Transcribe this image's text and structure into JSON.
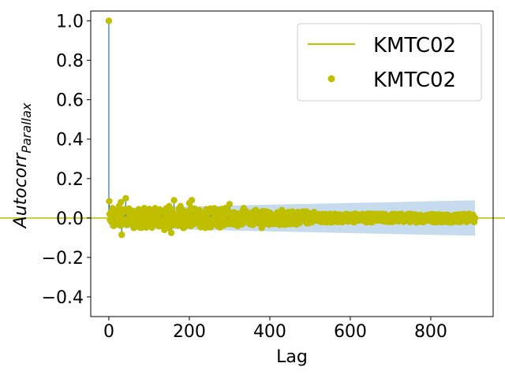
{
  "chart_data": {
    "type": "scatter",
    "title": "",
    "xlabel": "Lag",
    "ylabel_base": "Autocorr",
    "ylabel_sub": "Parallax",
    "xlim": [
      -45,
      955
    ],
    "ylim": [
      -0.5,
      1.05
    ],
    "xticks": [
      0,
      200,
      400,
      600,
      800
    ],
    "yticks": [
      -0.4,
      -0.2,
      0.0,
      0.2,
      0.4,
      0.6,
      0.8,
      1.0
    ],
    "xtick_labels": [
      "0",
      "200",
      "400",
      "600",
      "800"
    ],
    "ytick_labels": [
      "−0.4",
      "−0.2",
      "0.0",
      "0.2",
      "0.4",
      "0.6",
      "0.8",
      "1.0"
    ],
    "grid": false,
    "legend_position": "upper right",
    "legend": [
      {
        "label": "KMTC02",
        "marker": "line"
      },
      {
        "label": "KMTC02",
        "marker": "dot"
      }
    ],
    "series_name": "KMTC02",
    "max_lag": 910,
    "autocorr_values": [
      [
        0,
        1.0
      ],
      [
        1,
        0.085
      ],
      [
        2,
        0.02
      ],
      [
        3,
        -0.01
      ],
      [
        5,
        0.03
      ],
      [
        8,
        -0.02
      ],
      [
        12,
        -0.04
      ],
      [
        18,
        0.01
      ],
      [
        25,
        0.06
      ],
      [
        30,
        0.08
      ],
      [
        32,
        -0.085
      ],
      [
        38,
        0.045
      ],
      [
        42,
        0.1
      ],
      [
        46,
        -0.03
      ],
      [
        55,
        0.02
      ],
      [
        62,
        -0.05
      ],
      [
        70,
        0.03
      ],
      [
        78,
        -0.02
      ],
      [
        88,
        0.05
      ],
      [
        95,
        -0.04
      ],
      [
        105,
        0.02
      ],
      [
        118,
        -0.03
      ],
      [
        125,
        0.04
      ],
      [
        138,
        -0.06
      ],
      [
        150,
        0.06
      ],
      [
        155,
        -0.075
      ],
      [
        162,
        0.09
      ],
      [
        170,
        -0.02
      ],
      [
        178,
        0.06
      ],
      [
        185,
        -0.05
      ],
      [
        192,
        0.03
      ],
      [
        200,
        0.075
      ],
      [
        206,
        0.09
      ],
      [
        212,
        -0.03
      ],
      [
        225,
        0.04
      ],
      [
        240,
        -0.05
      ],
      [
        255,
        0.03
      ],
      [
        270,
        -0.04
      ],
      [
        290,
        0.05
      ],
      [
        300,
        0.07
      ],
      [
        320,
        -0.04
      ],
      [
        335,
        0.05
      ],
      [
        350,
        -0.03
      ],
      [
        365,
        0.04
      ],
      [
        380,
        -0.05
      ],
      [
        395,
        0.03
      ],
      [
        410,
        -0.02
      ],
      [
        430,
        0.04
      ],
      [
        450,
        -0.03
      ],
      [
        470,
        0.03
      ],
      [
        490,
        -0.02
      ],
      [
        510,
        0.03
      ],
      [
        530,
        -0.02
      ],
      [
        550,
        0.02
      ],
      [
        570,
        -0.02
      ],
      [
        590,
        0.02
      ],
      [
        610,
        -0.015
      ],
      [
        630,
        0.02
      ],
      [
        650,
        -0.02
      ],
      [
        670,
        0.015
      ],
      [
        690,
        -0.015
      ],
      [
        710,
        0.02
      ],
      [
        730,
        -0.015
      ],
      [
        750,
        0.015
      ],
      [
        770,
        -0.01
      ],
      [
        790,
        0.015
      ],
      [
        810,
        -0.01
      ],
      [
        830,
        0.01
      ],
      [
        850,
        -0.01
      ],
      [
        870,
        0.01
      ],
      [
        890,
        -0.005
      ],
      [
        910,
        0.0
      ]
    ],
    "confidence_band": {
      "lower_start": -0.05,
      "upper_start": 0.05,
      "lower_end": -0.09,
      "upper_end": 0.09
    },
    "colors": {
      "markers": "#bfbf00",
      "stems": "#1f77b4",
      "confidence_band": "#c6dbee",
      "zero_line": "#bfbf00",
      "axes": "#000000"
    }
  }
}
